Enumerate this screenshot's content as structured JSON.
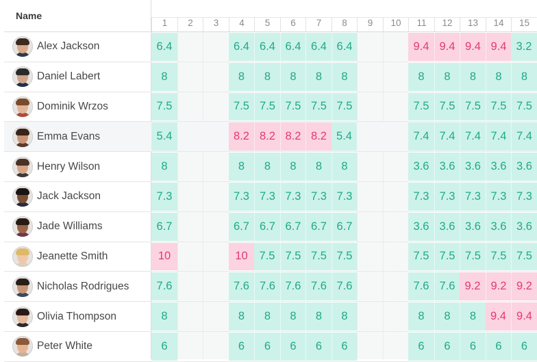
{
  "header": {
    "name_label": "Name"
  },
  "columns": [
    "1",
    "2",
    "3",
    "4",
    "5",
    "6",
    "7",
    "8",
    "9",
    "10",
    "11",
    "12",
    "13",
    "14",
    "15"
  ],
  "rows": [
    {
      "name": "Alex Jackson",
      "avatar": {
        "hair": "#3a2a20",
        "skin": "#d9a98a",
        "shirt": "#2f3a4a"
      },
      "cells": [
        [
          "6.4",
          "ok"
        ],
        [
          "",
          ""
        ],
        [
          "",
          ""
        ],
        [
          "6.4",
          "ok"
        ],
        [
          "6.4",
          "ok"
        ],
        [
          "6.4",
          "ok"
        ],
        [
          "6.4",
          "ok"
        ],
        [
          "6.4",
          "ok"
        ],
        [
          "",
          ""
        ],
        [
          "",
          ""
        ],
        [
          "9.4",
          "high"
        ],
        [
          "9.4",
          "high"
        ],
        [
          "9.4",
          "high"
        ],
        [
          "9.4",
          "high"
        ],
        [
          "3.2",
          "ok"
        ]
      ]
    },
    {
      "name": "Daniel Labert",
      "avatar": {
        "hair": "#2a2a2a",
        "skin": "#cfa48a",
        "shirt": "#1f2f4a"
      },
      "cells": [
        [
          "8",
          "ok"
        ],
        [
          "",
          ""
        ],
        [
          "",
          ""
        ],
        [
          "8",
          "ok"
        ],
        [
          "8",
          "ok"
        ],
        [
          "8",
          "ok"
        ],
        [
          "8",
          "ok"
        ],
        [
          "8",
          "ok"
        ],
        [
          "",
          ""
        ],
        [
          "",
          ""
        ],
        [
          "8",
          "ok"
        ],
        [
          "8",
          "ok"
        ],
        [
          "8",
          "ok"
        ],
        [
          "8",
          "ok"
        ],
        [
          "8",
          "ok"
        ]
      ]
    },
    {
      "name": "Dominik Wrzos",
      "avatar": {
        "hair": "#7a4a2a",
        "skin": "#e2b49a",
        "shirt": "#b04a3a"
      },
      "cells": [
        [
          "7.5",
          "ok"
        ],
        [
          "",
          ""
        ],
        [
          "",
          ""
        ],
        [
          "7.5",
          "ok"
        ],
        [
          "7.5",
          "ok"
        ],
        [
          "7.5",
          "ok"
        ],
        [
          "7.5",
          "ok"
        ],
        [
          "7.5",
          "ok"
        ],
        [
          "",
          ""
        ],
        [
          "",
          ""
        ],
        [
          "7.5",
          "ok"
        ],
        [
          "7.5",
          "ok"
        ],
        [
          "7.5",
          "ok"
        ],
        [
          "7.5",
          "ok"
        ],
        [
          "7.5",
          "ok"
        ]
      ]
    },
    {
      "name": "Emma Evans",
      "highlight": true,
      "avatar": {
        "hair": "#3a2418",
        "skin": "#c99478",
        "shirt": "#5a3a2a"
      },
      "cells": [
        [
          "5.4",
          "ok"
        ],
        [
          "",
          ""
        ],
        [
          "",
          ""
        ],
        [
          "8.2",
          "high"
        ],
        [
          "8.2",
          "high"
        ],
        [
          "8.2",
          "high"
        ],
        [
          "8.2",
          "high"
        ],
        [
          "5.4",
          "ok"
        ],
        [
          "",
          ""
        ],
        [
          "",
          ""
        ],
        [
          "7.4",
          "ok"
        ],
        [
          "7.4",
          "ok"
        ],
        [
          "7.4",
          "ok"
        ],
        [
          "7.4",
          "ok"
        ],
        [
          "7.4",
          "ok"
        ]
      ]
    },
    {
      "name": "Henry Wilson",
      "avatar": {
        "hair": "#4a3226",
        "skin": "#d8a486",
        "shirt": "#3a3a3a"
      },
      "cells": [
        [
          "8",
          "ok"
        ],
        [
          "",
          ""
        ],
        [
          "",
          ""
        ],
        [
          "8",
          "ok"
        ],
        [
          "8",
          "ok"
        ],
        [
          "8",
          "ok"
        ],
        [
          "8",
          "ok"
        ],
        [
          "8",
          "ok"
        ],
        [
          "",
          ""
        ],
        [
          "",
          ""
        ],
        [
          "3.6",
          "ok"
        ],
        [
          "3.6",
          "ok"
        ],
        [
          "3.6",
          "ok"
        ],
        [
          "3.6",
          "ok"
        ],
        [
          "3.6",
          "ok"
        ]
      ]
    },
    {
      "name": "Jack Jackson",
      "avatar": {
        "hair": "#1a1412",
        "skin": "#7a4e36",
        "shirt": "#2a2a3a"
      },
      "cells": [
        [
          "7.3",
          "ok"
        ],
        [
          "",
          ""
        ],
        [
          "",
          ""
        ],
        [
          "7.3",
          "ok"
        ],
        [
          "7.3",
          "ok"
        ],
        [
          "7.3",
          "ok"
        ],
        [
          "7.3",
          "ok"
        ],
        [
          "7.3",
          "ok"
        ],
        [
          "",
          ""
        ],
        [
          "",
          ""
        ],
        [
          "7.3",
          "ok"
        ],
        [
          "7.3",
          "ok"
        ],
        [
          "7.3",
          "ok"
        ],
        [
          "7.3",
          "ok"
        ],
        [
          "7.3",
          "ok"
        ]
      ]
    },
    {
      "name": "Jade Williams",
      "avatar": {
        "hair": "#2a1a14",
        "skin": "#9a6448",
        "shirt": "#6a3a4a"
      },
      "cells": [
        [
          "6.7",
          "ok"
        ],
        [
          "",
          ""
        ],
        [
          "",
          ""
        ],
        [
          "6.7",
          "ok"
        ],
        [
          "6.7",
          "ok"
        ],
        [
          "6.7",
          "ok"
        ],
        [
          "6.7",
          "ok"
        ],
        [
          "6.7",
          "ok"
        ],
        [
          "",
          ""
        ],
        [
          "",
          ""
        ],
        [
          "3.6",
          "ok"
        ],
        [
          "3.6",
          "ok"
        ],
        [
          "3.6",
          "ok"
        ],
        [
          "3.6",
          "ok"
        ],
        [
          "3.6",
          "ok"
        ]
      ]
    },
    {
      "name": "Jeanette Smith",
      "avatar": {
        "hair": "#e0b86a",
        "skin": "#f0c8a8",
        "shirt": "#d9d0c0"
      },
      "cells": [
        [
          "10",
          "high"
        ],
        [
          "",
          ""
        ],
        [
          "",
          ""
        ],
        [
          "10",
          "high"
        ],
        [
          "7.5",
          "ok"
        ],
        [
          "7.5",
          "ok"
        ],
        [
          "7.5",
          "ok"
        ],
        [
          "7.5",
          "ok"
        ],
        [
          "",
          ""
        ],
        [
          "",
          ""
        ],
        [
          "7.5",
          "ok"
        ],
        [
          "7.5",
          "ok"
        ],
        [
          "7.5",
          "ok"
        ],
        [
          "7.5",
          "ok"
        ],
        [
          "7.5",
          "ok"
        ]
      ]
    },
    {
      "name": "Nicholas Rodrigues",
      "avatar": {
        "hair": "#2a1e18",
        "skin": "#c89474",
        "shirt": "#3a4a5a"
      },
      "cells": [
        [
          "7.6",
          "ok"
        ],
        [
          "",
          ""
        ],
        [
          "",
          ""
        ],
        [
          "7.6",
          "ok"
        ],
        [
          "7.6",
          "ok"
        ],
        [
          "7.6",
          "ok"
        ],
        [
          "7.6",
          "ok"
        ],
        [
          "7.6",
          "ok"
        ],
        [
          "",
          ""
        ],
        [
          "",
          ""
        ],
        [
          "7.6",
          "ok"
        ],
        [
          "7.6",
          "ok"
        ],
        [
          "9.2",
          "high"
        ],
        [
          "9.2",
          "high"
        ],
        [
          "9.2",
          "high"
        ]
      ]
    },
    {
      "name": "Olivia Thompson",
      "avatar": {
        "hair": "#2a1a16",
        "skin": "#e4b89c",
        "shirt": "#2a2a2a"
      },
      "cells": [
        [
          "8",
          "ok"
        ],
        [
          "",
          ""
        ],
        [
          "",
          ""
        ],
        [
          "8",
          "ok"
        ],
        [
          "8",
          "ok"
        ],
        [
          "8",
          "ok"
        ],
        [
          "8",
          "ok"
        ],
        [
          "8",
          "ok"
        ],
        [
          "",
          ""
        ],
        [
          "",
          ""
        ],
        [
          "8",
          "ok"
        ],
        [
          "8",
          "ok"
        ],
        [
          "8",
          "ok"
        ],
        [
          "9.4",
          "high"
        ],
        [
          "9.4",
          "high"
        ]
      ]
    },
    {
      "name": "Peter White",
      "avatar": {
        "hair": "#8a5a3a",
        "skin": "#e6b494",
        "shirt": "#c0b0a0"
      },
      "cells": [
        [
          "6",
          "ok"
        ],
        [
          "",
          ""
        ],
        [
          "",
          ""
        ],
        [
          "6",
          "ok"
        ],
        [
          "6",
          "ok"
        ],
        [
          "6",
          "ok"
        ],
        [
          "6",
          "ok"
        ],
        [
          "6",
          "ok"
        ],
        [
          "",
          ""
        ],
        [
          "",
          ""
        ],
        [
          "6",
          "ok"
        ],
        [
          "6",
          "ok"
        ],
        [
          "6",
          "ok"
        ],
        [
          "6",
          "ok"
        ],
        [
          "6",
          "ok"
        ]
      ]
    }
  ]
}
